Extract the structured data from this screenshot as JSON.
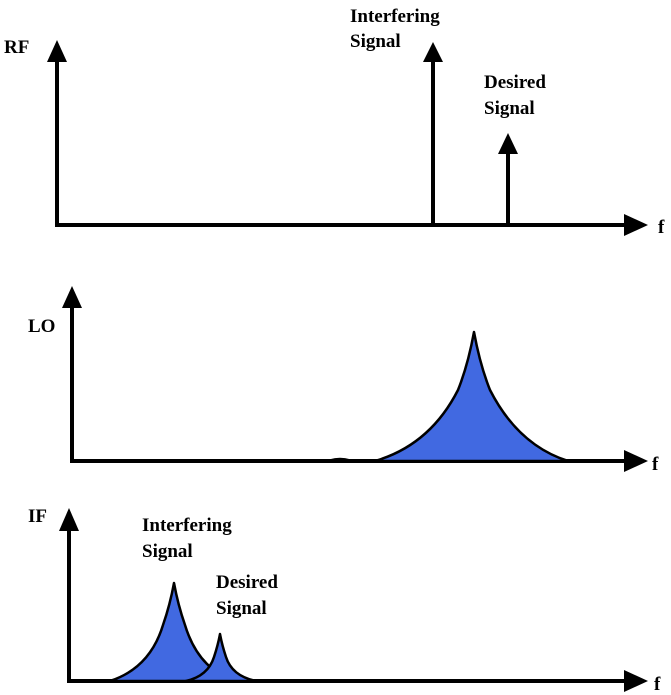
{
  "panels": {
    "rf": {
      "label": "RF",
      "freq_label": "f",
      "interfering_line1": "Interfering",
      "interfering_line2": "Signal",
      "desired_line1": "Desired",
      "desired_line2": "Signal"
    },
    "lo": {
      "label": "LO",
      "freq_label": "f"
    },
    "if": {
      "label": "IF",
      "freq_label": "f",
      "interfering_line1": "Interfering",
      "interfering_line2": "Signal",
      "desired_line1": "Desired",
      "desired_line2": "Signal"
    }
  },
  "colors": {
    "fill": "#4169e1",
    "stroke": "#000000"
  }
}
